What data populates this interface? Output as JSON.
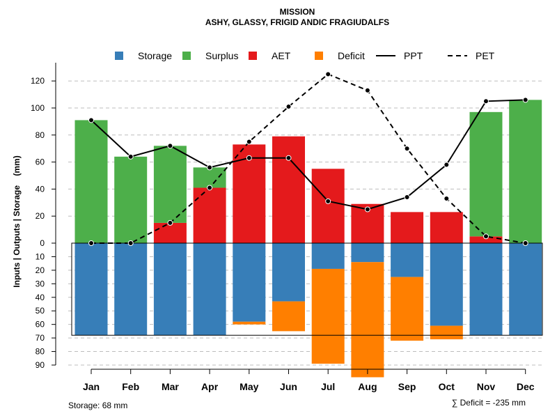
{
  "chart_data": {
    "type": "bar",
    "title": "MISSION",
    "subtitle": "ASHY, GLASSY, FRIGID ANDIC FRAGIUDALFS",
    "ylabel": "Inputs | Outputs | Storage    (mm)",
    "categories": [
      "Jan",
      "Feb",
      "Mar",
      "Apr",
      "May",
      "Jun",
      "Jul",
      "Aug",
      "Sep",
      "Oct",
      "Nov",
      "Dec"
    ],
    "upper_ticks": [
      "0",
      "20",
      "40",
      "60",
      "80",
      "100",
      "120"
    ],
    "lower_ticks": [
      "10",
      "20",
      "30",
      "40",
      "50",
      "60",
      "70",
      "80",
      "90"
    ],
    "ylim_upper": [
      0,
      130
    ],
    "ylim_lower": [
      0,
      90
    ],
    "legend": [
      {
        "label": "Storage",
        "kind": "box",
        "color": "#377EB8"
      },
      {
        "label": "Surplus",
        "kind": "box",
        "color": "#4DAF4A"
      },
      {
        "label": "AET",
        "kind": "box",
        "color": "#E41A1C"
      },
      {
        "label": "Deficit",
        "kind": "box",
        "color": "#FF7F00"
      },
      {
        "label": "PPT",
        "kind": "solid",
        "color": "#000000"
      },
      {
        "label": "PET",
        "kind": "dashed",
        "color": "#000000"
      }
    ],
    "series": [
      {
        "name": "AET",
        "color": "#E41A1C",
        "values": [
          0,
          0,
          15,
          41,
          73,
          79,
          55,
          29,
          23,
          23,
          5,
          0
        ]
      },
      {
        "name": "Surplus",
        "color": "#4DAF4A",
        "values": [
          91,
          64,
          57,
          15,
          0,
          0,
          0,
          0,
          0,
          0,
          92,
          106
        ]
      },
      {
        "name": "Storage",
        "color": "#377EB8",
        "values": [
          68,
          68,
          68,
          68,
          58,
          43,
          19,
          14,
          25,
          61,
          68,
          68
        ]
      },
      {
        "name": "Deficit",
        "color": "#FF7F00",
        "values": [
          0,
          0,
          0,
          0,
          2,
          22,
          70,
          85,
          47,
          10,
          0,
          0
        ]
      },
      {
        "name": "PPT",
        "color": "#000000",
        "values": [
          91,
          64,
          72,
          56,
          63,
          63,
          31,
          25,
          34,
          58,
          105,
          106
        ]
      },
      {
        "name": "PET",
        "color": "#000000",
        "values": [
          0,
          0,
          15,
          41,
          75,
          101,
          125,
          113,
          70,
          33,
          5,
          0
        ]
      }
    ],
    "storage_capacity": 68,
    "footer_left": "Storage: 68 mm",
    "footer_right": "∑ Deficit = -235 mm"
  }
}
